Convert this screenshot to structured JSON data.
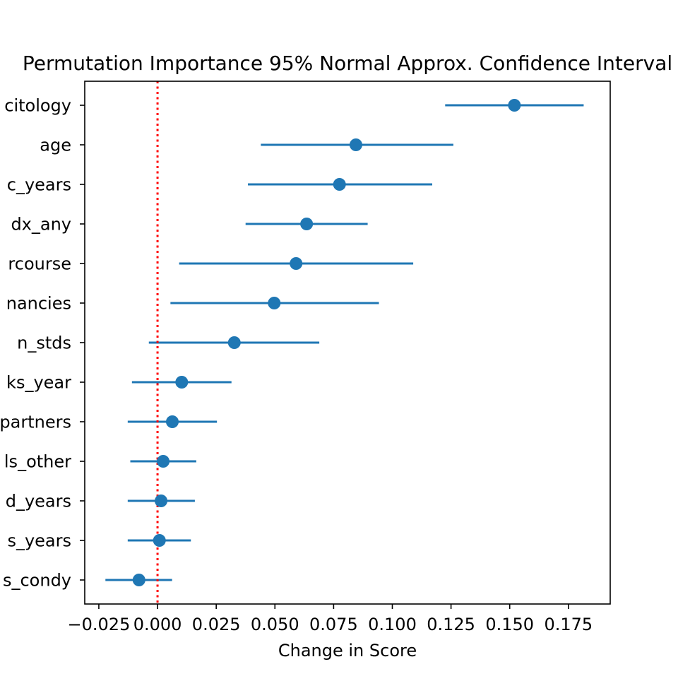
{
  "chart_data": {
    "type": "errorbar",
    "orientation": "horizontal",
    "title": "Permutation Importance 95% Normal Approx. Confidence Interval",
    "xlabel": "Change in Score",
    "ylabel": "",
    "xlim": [
      -0.031,
      0.1928
    ],
    "x_ticks": [
      "−0.025",
      "0.000",
      "0.025",
      "0.050",
      "0.075",
      "0.100",
      "0.125",
      "0.150",
      "0.175"
    ],
    "x_tick_values": [
      -0.025,
      0.0,
      0.025,
      0.05,
      0.075,
      0.1,
      0.125,
      0.15,
      0.175
    ],
    "reference_line": {
      "x": 0.0,
      "color": "#ff0000",
      "style": "dotted"
    },
    "marker_color": "#1f77b4",
    "grid": false,
    "points": [
      {
        "label": "citology",
        "value": 0.152,
        "low": 0.1225,
        "high": 0.1815
      },
      {
        "label": "age",
        "value": 0.0845,
        "low": 0.044,
        "high": 0.126
      },
      {
        "label": "c_years",
        "value": 0.0775,
        "low": 0.0385,
        "high": 0.117
      },
      {
        "label": "dx_any",
        "value": 0.0635,
        "low": 0.0375,
        "high": 0.0895
      },
      {
        "label": "rcourse",
        "value": 0.059,
        "low": 0.0092,
        "high": 0.1089
      },
      {
        "label": "nancies",
        "value": 0.0497,
        "low": 0.0055,
        "high": 0.0943
      },
      {
        "label": "n_stds",
        "value": 0.0327,
        "low": -0.0037,
        "high": 0.0689
      },
      {
        "label": "ks_year",
        "value": 0.0103,
        "low": -0.0109,
        "high": 0.0315
      },
      {
        "label": "partners",
        "value": 0.0063,
        "low": -0.0127,
        "high": 0.0253
      },
      {
        "label": "ls_other",
        "value": 0.0024,
        "low": -0.0116,
        "high": 0.0165
      },
      {
        "label": "d_years",
        "value": 0.0015,
        "low": -0.0127,
        "high": 0.0159
      },
      {
        "label": "s_years",
        "value": 0.0008,
        "low": -0.0127,
        "high": 0.0142
      },
      {
        "label": "s_condy",
        "value": -0.0079,
        "low": -0.0222,
        "high": 0.0062
      }
    ]
  }
}
